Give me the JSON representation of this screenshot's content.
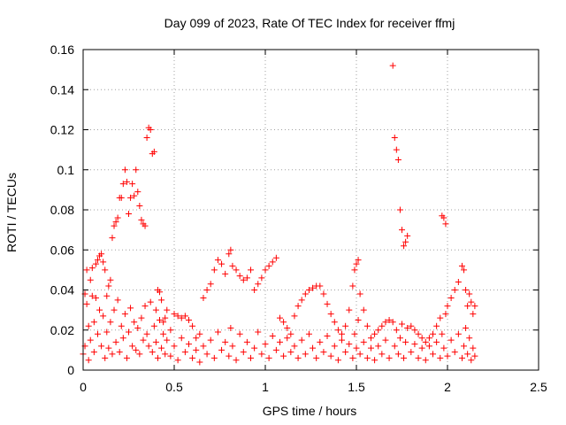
{
  "chart_data": {
    "type": "scatter",
    "title": "Day 099 of 2023, Rate Of TEC Index for receiver ffmj",
    "xlabel": "GPS time / hours",
    "ylabel": "ROTI / TECUs",
    "xlim": [
      0,
      2.5
    ],
    "ylim": [
      0,
      0.16
    ],
    "xticks": [
      "0",
      "0.5",
      "1",
      "1.5",
      "2",
      "2.5"
    ],
    "xtick_values": [
      0,
      0.5,
      1,
      1.5,
      2,
      2.5
    ],
    "yticks": [
      "0",
      "0.02",
      "0.04",
      "0.06",
      "0.08",
      "0.1",
      "0.12",
      "0.14",
      "0.16"
    ],
    "ytick_values": [
      0,
      0.02,
      0.04,
      0.06,
      0.08,
      0.1,
      0.12,
      0.14,
      0.16
    ],
    "grid": true,
    "marker": "+",
    "color": "#ff0000",
    "series": [
      {
        "name": "ROTI",
        "points": [
          [
            0.0,
            0.008
          ],
          [
            0.01,
            0.012
          ],
          [
            0.01,
            0.038
          ],
          [
            0.02,
            0.05
          ],
          [
            0.02,
            0.033
          ],
          [
            0.03,
            0.022
          ],
          [
            0.03,
            0.005
          ],
          [
            0.04,
            0.045
          ],
          [
            0.04,
            0.015
          ],
          [
            0.05,
            0.051
          ],
          [
            0.05,
            0.037
          ],
          [
            0.06,
            0.024
          ],
          [
            0.06,
            0.009
          ],
          [
            0.07,
            0.053
          ],
          [
            0.07,
            0.036
          ],
          [
            0.08,
            0.055
          ],
          [
            0.08,
            0.018
          ],
          [
            0.09,
            0.057
          ],
          [
            0.09,
            0.03
          ],
          [
            0.1,
            0.058
          ],
          [
            0.1,
            0.012
          ],
          [
            0.11,
            0.054
          ],
          [
            0.11,
            0.027
          ],
          [
            0.12,
            0.05
          ],
          [
            0.12,
            0.006
          ],
          [
            0.13,
            0.037
          ],
          [
            0.13,
            0.019
          ],
          [
            0.14,
            0.042
          ],
          [
            0.14,
            0.011
          ],
          [
            0.15,
            0.045
          ],
          [
            0.15,
            0.024
          ],
          [
            0.16,
            0.066
          ],
          [
            0.16,
            0.008
          ],
          [
            0.17,
            0.072
          ],
          [
            0.17,
            0.03
          ],
          [
            0.18,
            0.074
          ],
          [
            0.18,
            0.014
          ],
          [
            0.19,
            0.076
          ],
          [
            0.19,
            0.035
          ],
          [
            0.2,
            0.086
          ],
          [
            0.2,
            0.009
          ],
          [
            0.21,
            0.086
          ],
          [
            0.21,
            0.022
          ],
          [
            0.22,
            0.093
          ],
          [
            0.22,
            0.016
          ],
          [
            0.23,
            0.1
          ],
          [
            0.23,
            0.028
          ],
          [
            0.24,
            0.094
          ],
          [
            0.24,
            0.006
          ],
          [
            0.25,
            0.078
          ],
          [
            0.25,
            0.019
          ],
          [
            0.26,
            0.086
          ],
          [
            0.26,
            0.031
          ],
          [
            0.27,
            0.093
          ],
          [
            0.27,
            0.012
          ],
          [
            0.28,
            0.087
          ],
          [
            0.28,
            0.024
          ],
          [
            0.29,
            0.1
          ],
          [
            0.29,
            0.01
          ],
          [
            0.3,
            0.089
          ],
          [
            0.3,
            0.021
          ],
          [
            0.31,
            0.082
          ],
          [
            0.31,
            0.008
          ],
          [
            0.32,
            0.075
          ],
          [
            0.32,
            0.026
          ],
          [
            0.33,
            0.073
          ],
          [
            0.33,
            0.015
          ],
          [
            0.34,
            0.072
          ],
          [
            0.34,
            0.032
          ],
          [
            0.35,
            0.116
          ],
          [
            0.35,
            0.018
          ],
          [
            0.36,
            0.121
          ],
          [
            0.36,
            0.012
          ],
          [
            0.37,
            0.12
          ],
          [
            0.37,
            0.034
          ],
          [
            0.38,
            0.108
          ],
          [
            0.38,
            0.009
          ],
          [
            0.39,
            0.109
          ],
          [
            0.39,
            0.022
          ],
          [
            0.4,
            0.03
          ],
          [
            0.4,
            0.014
          ],
          [
            0.41,
            0.04
          ],
          [
            0.41,
            0.006
          ],
          [
            0.42,
            0.039
          ],
          [
            0.42,
            0.025
          ],
          [
            0.43,
            0.035
          ],
          [
            0.43,
            0.011
          ],
          [
            0.44,
            0.024
          ],
          [
            0.44,
            0.018
          ],
          [
            0.45,
            0.026
          ],
          [
            0.45,
            0.008
          ],
          [
            0.46,
            0.03
          ],
          [
            0.46,
            0.015
          ],
          [
            0.48,
            0.02
          ],
          [
            0.48,
            0.007
          ],
          [
            0.5,
            0.028
          ],
          [
            0.5,
            0.012
          ],
          [
            0.52,
            0.027
          ],
          [
            0.52,
            0.005
          ],
          [
            0.54,
            0.026
          ],
          [
            0.54,
            0.016
          ],
          [
            0.56,
            0.027
          ],
          [
            0.56,
            0.009
          ],
          [
            0.58,
            0.025
          ],
          [
            0.58,
            0.013
          ],
          [
            0.6,
            0.022
          ],
          [
            0.6,
            0.006
          ],
          [
            0.62,
            0.016
          ],
          [
            0.62,
            0.01
          ],
          [
            0.64,
            0.018
          ],
          [
            0.64,
            0.004
          ],
          [
            0.66,
            0.036
          ],
          [
            0.66,
            0.012
          ],
          [
            0.68,
            0.04
          ],
          [
            0.68,
            0.008
          ],
          [
            0.7,
            0.043
          ],
          [
            0.7,
            0.015
          ],
          [
            0.72,
            0.05
          ],
          [
            0.72,
            0.006
          ],
          [
            0.74,
            0.055
          ],
          [
            0.74,
            0.019
          ],
          [
            0.76,
            0.053
          ],
          [
            0.76,
            0.01
          ],
          [
            0.78,
            0.048
          ],
          [
            0.78,
            0.014
          ],
          [
            0.8,
            0.058
          ],
          [
            0.8,
            0.007
          ],
          [
            0.81,
            0.06
          ],
          [
            0.81,
            0.021
          ],
          [
            0.82,
            0.052
          ],
          [
            0.82,
            0.012
          ],
          [
            0.84,
            0.05
          ],
          [
            0.84,
            0.005
          ],
          [
            0.86,
            0.047
          ],
          [
            0.86,
            0.018
          ],
          [
            0.88,
            0.045
          ],
          [
            0.88,
            0.009
          ],
          [
            0.9,
            0.046
          ],
          [
            0.9,
            0.014
          ],
          [
            0.92,
            0.05
          ],
          [
            0.92,
            0.006
          ],
          [
            0.94,
            0.04
          ],
          [
            0.94,
            0.011
          ],
          [
            0.96,
            0.043
          ],
          [
            0.96,
            0.019
          ],
          [
            0.98,
            0.046
          ],
          [
            0.98,
            0.008
          ],
          [
            1.0,
            0.05
          ],
          [
            1.0,
            0.013
          ],
          [
            1.02,
            0.052
          ],
          [
            1.02,
            0.006
          ],
          [
            1.04,
            0.054
          ],
          [
            1.04,
            0.017
          ],
          [
            1.06,
            0.056
          ],
          [
            1.06,
            0.01
          ],
          [
            1.08,
            0.026
          ],
          [
            1.08,
            0.014
          ],
          [
            1.1,
            0.024
          ],
          [
            1.1,
            0.007
          ],
          [
            1.12,
            0.021
          ],
          [
            1.12,
            0.016
          ],
          [
            1.14,
            0.018
          ],
          [
            1.14,
            0.009
          ],
          [
            1.16,
            0.027
          ],
          [
            1.16,
            0.012
          ],
          [
            1.18,
            0.032
          ],
          [
            1.18,
            0.006
          ],
          [
            1.2,
            0.035
          ],
          [
            1.2,
            0.015
          ],
          [
            1.22,
            0.038
          ],
          [
            1.22,
            0.008
          ],
          [
            1.24,
            0.04
          ],
          [
            1.24,
            0.018
          ],
          [
            1.26,
            0.041
          ],
          [
            1.26,
            0.011
          ],
          [
            1.28,
            0.042
          ],
          [
            1.28,
            0.006
          ],
          [
            1.3,
            0.042
          ],
          [
            1.3,
            0.014
          ],
          [
            1.32,
            0.038
          ],
          [
            1.32,
            0.009
          ],
          [
            1.34,
            0.033
          ],
          [
            1.34,
            0.017
          ],
          [
            1.36,
            0.028
          ],
          [
            1.36,
            0.007
          ],
          [
            1.38,
            0.024
          ],
          [
            1.38,
            0.012
          ],
          [
            1.4,
            0.02
          ],
          [
            1.4,
            0.005
          ],
          [
            1.42,
            0.018
          ],
          [
            1.42,
            0.015
          ],
          [
            1.44,
            0.022
          ],
          [
            1.44,
            0.009
          ],
          [
            1.46,
            0.03
          ],
          [
            1.46,
            0.013
          ],
          [
            1.48,
            0.042
          ],
          [
            1.48,
            0.006
          ],
          [
            1.49,
            0.05
          ],
          [
            1.49,
            0.018
          ],
          [
            1.5,
            0.053
          ],
          [
            1.5,
            0.011
          ],
          [
            1.51,
            0.055
          ],
          [
            1.51,
            0.025
          ],
          [
            1.52,
            0.038
          ],
          [
            1.52,
            0.008
          ],
          [
            1.54,
            0.03
          ],
          [
            1.54,
            0.014
          ],
          [
            1.56,
            0.022
          ],
          [
            1.56,
            0.006
          ],
          [
            1.58,
            0.016
          ],
          [
            1.58,
            0.011
          ],
          [
            1.6,
            0.018
          ],
          [
            1.6,
            0.005
          ],
          [
            1.62,
            0.02
          ],
          [
            1.62,
            0.012
          ],
          [
            1.64,
            0.022
          ],
          [
            1.64,
            0.008
          ],
          [
            1.66,
            0.024
          ],
          [
            1.66,
            0.015
          ],
          [
            1.68,
            0.025
          ],
          [
            1.68,
            0.006
          ],
          [
            1.7,
            0.152
          ],
          [
            1.7,
            0.024
          ],
          [
            1.71,
            0.116
          ],
          [
            1.71,
            0.012
          ],
          [
            1.72,
            0.11
          ],
          [
            1.72,
            0.02
          ],
          [
            1.73,
            0.105
          ],
          [
            1.73,
            0.008
          ],
          [
            1.74,
            0.08
          ],
          [
            1.74,
            0.016
          ],
          [
            1.75,
            0.07
          ],
          [
            1.75,
            0.023
          ],
          [
            1.76,
            0.062
          ],
          [
            1.76,
            0.006
          ],
          [
            1.77,
            0.064
          ],
          [
            1.77,
            0.014
          ],
          [
            1.78,
            0.067
          ],
          [
            1.78,
            0.021
          ],
          [
            1.8,
            0.022
          ],
          [
            1.8,
            0.009
          ],
          [
            1.82,
            0.02
          ],
          [
            1.82,
            0.013
          ],
          [
            1.84,
            0.018
          ],
          [
            1.84,
            0.006
          ],
          [
            1.86,
            0.016
          ],
          [
            1.86,
            0.011
          ],
          [
            1.88,
            0.014
          ],
          [
            1.88,
            0.005
          ],
          [
            1.9,
            0.016
          ],
          [
            1.9,
            0.012
          ],
          [
            1.92,
            0.018
          ],
          [
            1.92,
            0.008
          ],
          [
            1.94,
            0.022
          ],
          [
            1.94,
            0.014
          ],
          [
            1.96,
            0.026
          ],
          [
            1.96,
            0.006
          ],
          [
            1.97,
            0.077
          ],
          [
            1.97,
            0.018
          ],
          [
            1.98,
            0.076
          ],
          [
            1.98,
            0.011
          ],
          [
            1.99,
            0.073
          ],
          [
            1.99,
            0.028
          ],
          [
            2.0,
            0.032
          ],
          [
            2.0,
            0.007
          ],
          [
            2.02,
            0.036
          ],
          [
            2.02,
            0.015
          ],
          [
            2.04,
            0.04
          ],
          [
            2.04,
            0.009
          ],
          [
            2.06,
            0.044
          ],
          [
            2.06,
            0.018
          ],
          [
            2.08,
            0.052
          ],
          [
            2.08,
            0.006
          ],
          [
            2.09,
            0.05
          ],
          [
            2.09,
            0.012
          ],
          [
            2.1,
            0.04
          ],
          [
            2.1,
            0.021
          ],
          [
            2.11,
            0.032
          ],
          [
            2.11,
            0.008
          ],
          [
            2.12,
            0.038
          ],
          [
            2.12,
            0.016
          ],
          [
            2.13,
            0.034
          ],
          [
            2.13,
            0.005
          ],
          [
            2.14,
            0.028
          ],
          [
            2.14,
            0.011
          ],
          [
            2.15,
            0.032
          ],
          [
            2.15,
            0.007
          ]
        ]
      }
    ]
  }
}
